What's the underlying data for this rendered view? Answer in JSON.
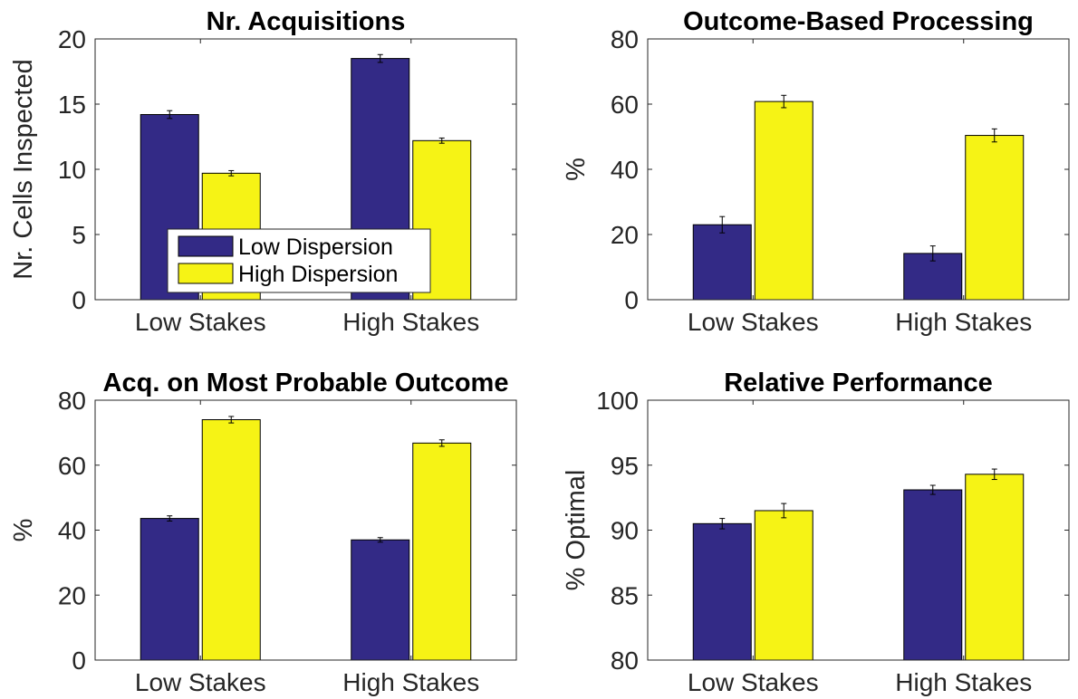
{
  "colors": {
    "low": "#332a86",
    "high": "#f6f315",
    "axis": "#262626",
    "bar_edge": "#000000"
  },
  "legend": {
    "panel": 0,
    "placement": "bottom-center",
    "entries": [
      "Low Dispersion",
      "High Dispersion"
    ]
  },
  "chart_data": [
    {
      "type": "bar",
      "title": "Nr. Acquisitions",
      "ylabel": "Nr. Cells Inspected",
      "xlabel": "",
      "categories": [
        "Low Stakes",
        "High Stakes"
      ],
      "ylim": [
        0,
        20
      ],
      "yticks": [
        0,
        5,
        10,
        15,
        20
      ],
      "series": [
        {
          "name": "Low Dispersion",
          "values": [
            14.2,
            18.5
          ],
          "errors": [
            0.3,
            0.3
          ]
        },
        {
          "name": "High Dispersion",
          "values": [
            9.7,
            12.2
          ],
          "errors": [
            0.2,
            0.2
          ]
        }
      ]
    },
    {
      "type": "bar",
      "title": "Outcome-Based Processing",
      "ylabel": "%",
      "xlabel": "",
      "categories": [
        "Low Stakes",
        "High Stakes"
      ],
      "ylim": [
        0,
        80
      ],
      "yticks": [
        0,
        20,
        40,
        60,
        80
      ],
      "series": [
        {
          "name": "Low Dispersion",
          "values": [
            23,
            14.2
          ],
          "errors": [
            2.5,
            2.3
          ]
        },
        {
          "name": "High Dispersion",
          "values": [
            60.8,
            50.4
          ],
          "errors": [
            1.9,
            2.0
          ]
        }
      ]
    },
    {
      "type": "bar",
      "title": "Acq. on Most Probable Outcome",
      "ylabel": "%",
      "xlabel": "",
      "categories": [
        "Low Stakes",
        "High Stakes"
      ],
      "ylim": [
        0,
        80
      ],
      "yticks": [
        0,
        20,
        40,
        60,
        80
      ],
      "series": [
        {
          "name": "Low Dispersion",
          "values": [
            43.6,
            37.0
          ],
          "errors": [
            0.8,
            0.7
          ]
        },
        {
          "name": "High Dispersion",
          "values": [
            74.0,
            66.8
          ],
          "errors": [
            1.0,
            1.0
          ]
        }
      ]
    },
    {
      "type": "bar",
      "title": "Relative Performance",
      "ylabel": "% Optimal",
      "xlabel": "",
      "categories": [
        "Low Stakes",
        "High Stakes"
      ],
      "ylim": [
        80,
        100
      ],
      "yticks": [
        80,
        85,
        90,
        95,
        100
      ],
      "series": [
        {
          "name": "Low Dispersion",
          "values": [
            90.5,
            93.1
          ],
          "errors": [
            0.4,
            0.35
          ]
        },
        {
          "name": "High Dispersion",
          "values": [
            91.5,
            94.3
          ],
          "errors": [
            0.55,
            0.4
          ]
        }
      ]
    }
  ]
}
